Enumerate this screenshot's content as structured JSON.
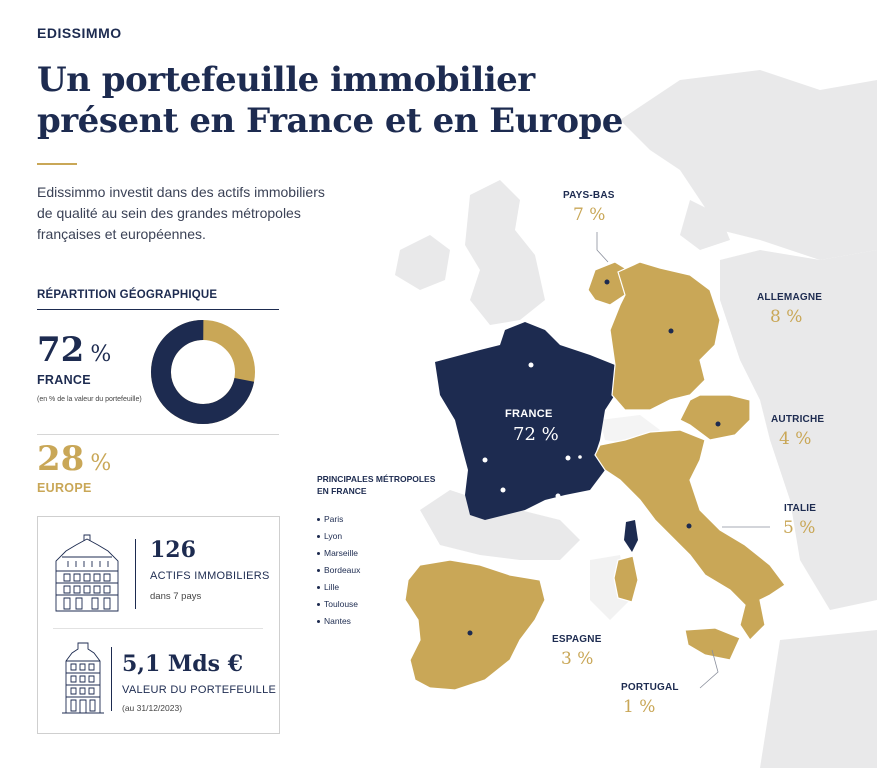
{
  "brand": "EDISSIMMO",
  "title": {
    "line1": "Un portefeuille immobilier",
    "line2": "présent en France et en Europe"
  },
  "intro": {
    "line1": "Edissimmo investit dans des actifs immobiliers",
    "line2": "de qualité au sein des grandes métropoles",
    "line3": "françaises et européennes."
  },
  "repartition": {
    "label": "RÉPARTITION GÉOGRAPHIQUE",
    "france_value": "72",
    "france_label": "FRANCE",
    "note": "(en % de la valeur du portefeuille)",
    "europe_value": "28",
    "europe_label": "EUROPE",
    "unit": "%"
  },
  "donut": {
    "france_share": 72,
    "europe_share": 28,
    "france_color": "#1d2b50",
    "europe_color": "#c9a757"
  },
  "stats": {
    "assets": {
      "value": "126",
      "label": "ACTIFS IMMOBILIERS",
      "sub": "dans 7 pays"
    },
    "portfolio": {
      "value": "5,1 Mds €",
      "label": "VALEUR DU PORTEFEUILLE",
      "sub": "(au 31/12/2023)"
    }
  },
  "map": {
    "countries": {
      "france": {
        "name": "FRANCE",
        "value": "72 %"
      },
      "pays_bas": {
        "name": "PAYS-BAS",
        "value": "7 %"
      },
      "allemagne": {
        "name": "ALLEMAGNE",
        "value": "8 %"
      },
      "autriche": {
        "name": "AUTRICHE",
        "value": "4 %"
      },
      "italie": {
        "name": "ITALIE",
        "value": "5 %"
      },
      "espagne": {
        "name": "ESPAGNE",
        "value": "3 %"
      },
      "portugal": {
        "name": "PORTUGAL",
        "value": "1 %"
      }
    },
    "cities_title_line1": "PRINCIPALES MÉTROPOLES",
    "cities_title_line2": "EN FRANCE",
    "cities": [
      "Paris",
      "Lyon",
      "Marseille",
      "Bordeaux",
      "Lille",
      "Toulouse",
      "Nantes"
    ]
  },
  "colors": {
    "navy": "#1d2b50",
    "gold": "#c9a757",
    "land": "#e9e9ea"
  }
}
